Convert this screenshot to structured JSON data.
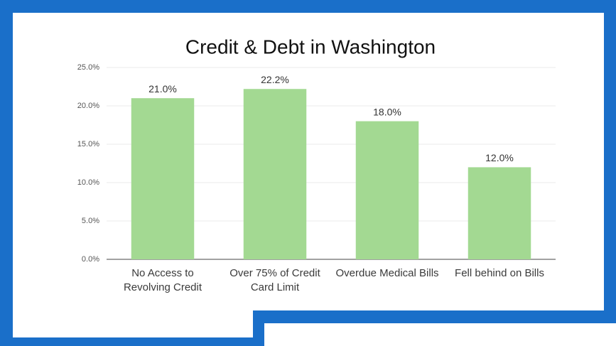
{
  "chart_data": {
    "type": "bar",
    "title": "Credit & Debt in Washington",
    "categories": [
      "No Access to Revolving Credit",
      "Over 75% of Credit Card Limit",
      "Overdue Medical Bills",
      "Fell behind on Bills"
    ],
    "values": [
      21.0,
      22.2,
      18.0,
      12.0
    ],
    "value_labels": [
      "21.0%",
      "22.2%",
      "18.0%",
      "12.0%"
    ],
    "color": "#a3d992",
    "ylim": [
      0,
      25
    ],
    "yticks": [
      {
        "value": 0,
        "label": "0.0%"
      },
      {
        "value": 5,
        "label": "5.0%"
      },
      {
        "value": 10,
        "label": "10.0%"
      },
      {
        "value": 15,
        "label": "15.0%"
      },
      {
        "value": 20,
        "label": "20.0%"
      },
      {
        "value": 25,
        "label": "25.0%"
      }
    ],
    "grid": true
  }
}
